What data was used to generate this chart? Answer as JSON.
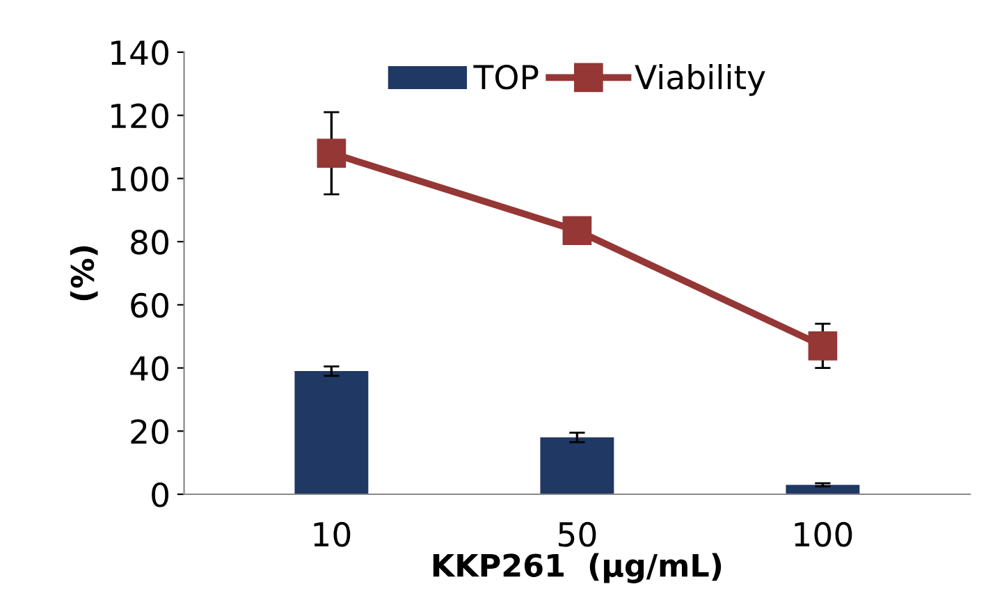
{
  "chart_data": {
    "type": "bar",
    "xlabel": "KKP261  (µg/mL)",
    "ylabel": "(%)",
    "categories": [
      "10",
      "50",
      "100"
    ],
    "series": [
      {
        "name": "TOP",
        "color": "#1f3864",
        "values": [
          39,
          18,
          3
        ],
        "errors": [
          1.5,
          1.5,
          0.5
        ]
      },
      {
        "name": "Viability",
        "type": "line",
        "color": "#953735",
        "values": [
          108,
          83.5,
          47
        ],
        "errors": [
          13,
          null,
          7
        ],
        "marker": "square"
      }
    ],
    "ylim": [
      0,
      140
    ],
    "yticks": [
      0,
      20,
      40,
      60,
      80,
      100,
      120,
      140
    ],
    "grid": false,
    "legend": "top"
  }
}
